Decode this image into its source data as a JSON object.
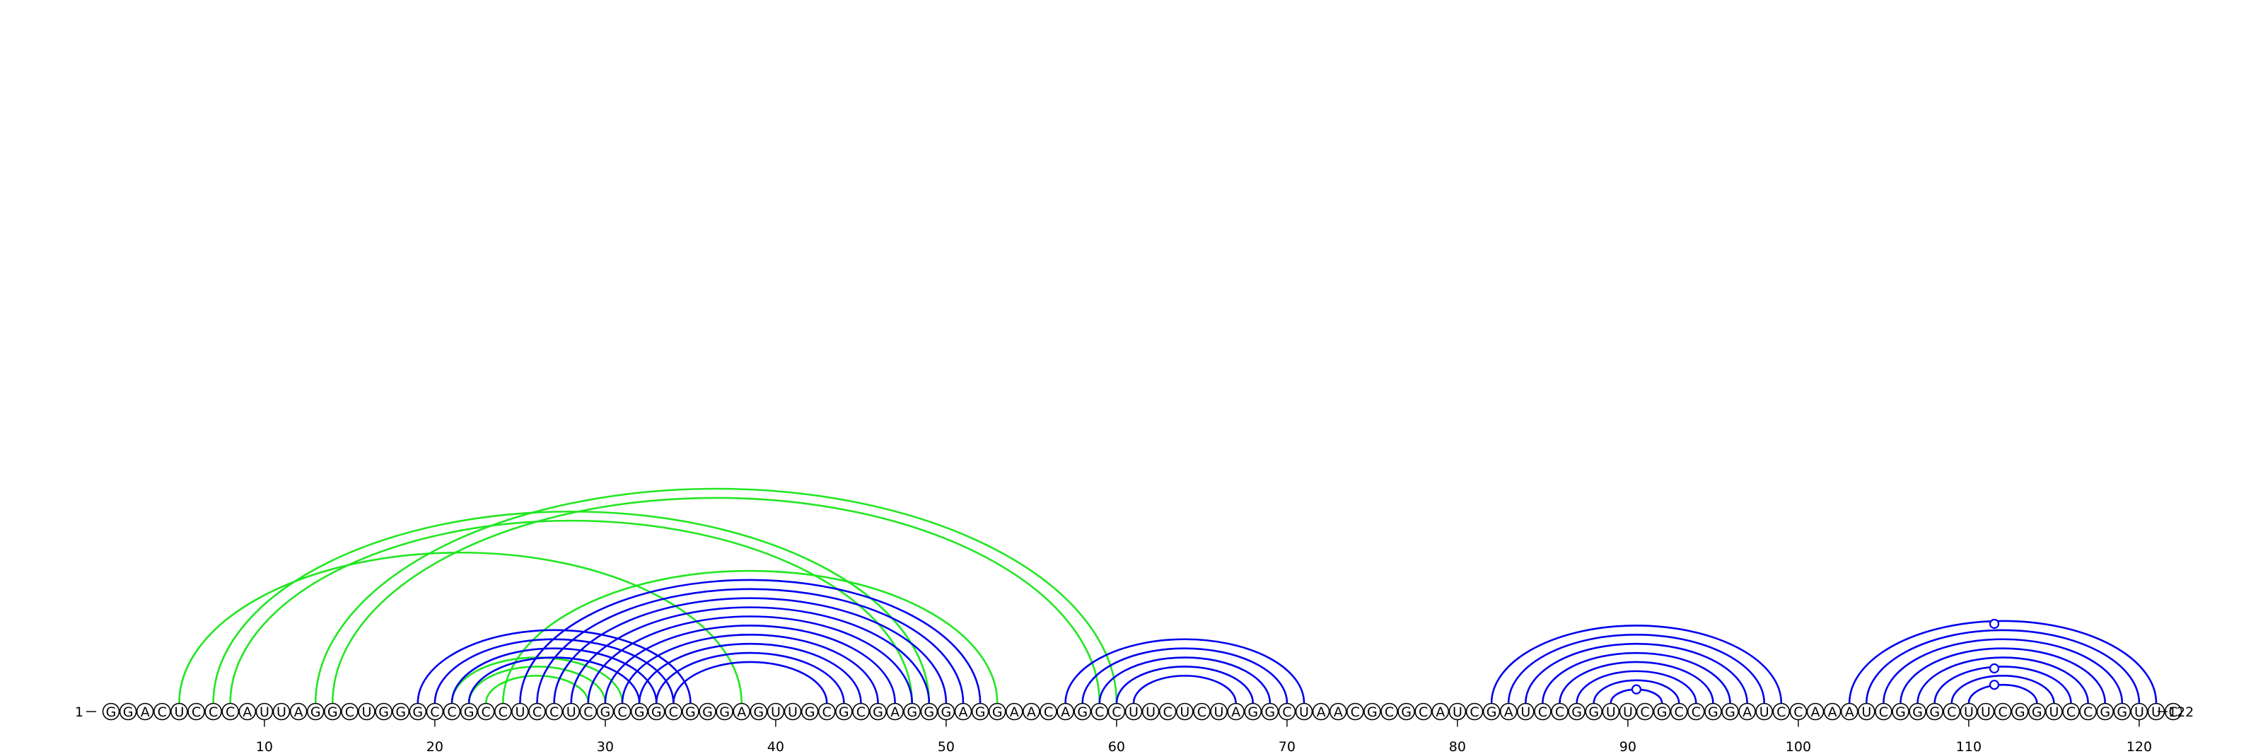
{
  "sequence": "GGACUCCCAUUAGGCUGGGCCGCCUCCUCGCGGCGGGAGUUGCGCGAGGGAGGAACAGCCUUCUCUAGGCUAACGCGCAUCGAUCCGGUUCGCCGGAUCCAAAUCGGGCUUCGGUCCGGUUC",
  "start_label": "1",
  "end_label": "122",
  "tick_positions": [
    10,
    20,
    30,
    40,
    50,
    60,
    70,
    80,
    90,
    100,
    110,
    120
  ],
  "colors": {
    "helix": "#0000ee",
    "pseudoknot": "#22e622"
  },
  "helices": [
    {
      "color": "pseudoknot",
      "pairs": [
        [
          5,
          38
        ]
      ]
    },
    {
      "color": "pseudoknot",
      "pairs": [
        [
          7,
          49
        ],
        [
          8,
          48
        ]
      ]
    },
    {
      "color": "pseudoknot",
      "pairs": [
        [
          13,
          60
        ],
        [
          14,
          59
        ]
      ]
    },
    {
      "color": "pseudoknot",
      "pairs": [
        [
          21,
          31
        ],
        [
          22,
          30
        ],
        [
          23,
          29
        ]
      ]
    },
    {
      "color": "pseudoknot",
      "pairs": [
        [
          24,
          53
        ]
      ]
    },
    {
      "color": "helix",
      "pairs": [
        [
          19,
          35
        ],
        [
          20,
          34
        ],
        [
          21,
          33
        ],
        [
          22,
          32
        ]
      ]
    },
    {
      "color": "helix",
      "pairs": [
        [
          25,
          52
        ],
        [
          26,
          51
        ],
        [
          27,
          50
        ],
        [
          28,
          49
        ],
        [
          29,
          48
        ],
        [
          30,
          47
        ],
        [
          31,
          46
        ],
        [
          32,
          45
        ],
        [
          33,
          44
        ],
        [
          34,
          43
        ]
      ]
    },
    {
      "color": "helix",
      "pairs": [
        [
          57,
          71
        ],
        [
          58,
          70
        ],
        [
          59,
          69
        ],
        [
          60,
          68
        ],
        [
          61,
          67
        ]
      ]
    },
    {
      "color": "helix",
      "pairs": [
        [
          82,
          99
        ],
        [
          83,
          98
        ],
        [
          84,
          97
        ],
        [
          85,
          96
        ],
        [
          86,
          95
        ],
        [
          87,
          94
        ],
        [
          88,
          93
        ],
        [
          89,
          92
        ]
      ]
    },
    {
      "color": "helix",
      "pairs": [
        [
          103,
          121
        ],
        [
          104,
          120
        ],
        [
          105,
          119
        ],
        [
          106,
          118
        ],
        [
          107,
          117
        ],
        [
          108,
          116
        ],
        [
          109,
          115
        ],
        [
          110,
          114
        ]
      ]
    }
  ],
  "loop_markers": [
    90.5,
    111.5
  ]
}
